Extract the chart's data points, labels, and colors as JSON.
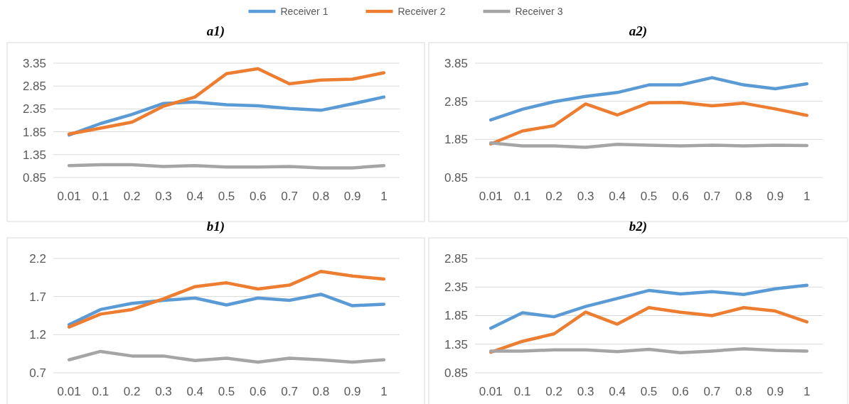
{
  "chart_data": [
    {
      "type": "line",
      "title": "a1)",
      "categories": [
        "0.01",
        "0.1",
        "0.2",
        "0.3",
        "0.4",
        "0.5",
        "0.6",
        "0.7",
        "0.8",
        "0.9",
        "1"
      ],
      "ylim": [
        0.85,
        3.35
      ],
      "yticks": [
        0.85,
        1.35,
        1.85,
        2.35,
        2.85,
        3.35
      ],
      "grid": "y",
      "legend": "top",
      "marker": "none",
      "series": [
        {
          "name": "Receiver 1",
          "color": "#5b9bd5",
          "values": [
            1.78,
            2.03,
            2.23,
            2.47,
            2.5,
            2.44,
            2.42,
            2.36,
            2.32,
            2.46,
            2.61
          ]
        },
        {
          "name": "Receiver 2",
          "color": "#ed7d31",
          "values": [
            1.8,
            1.93,
            2.06,
            2.41,
            2.61,
            3.12,
            3.23,
            2.9,
            2.98,
            3.0,
            3.14
          ]
        },
        {
          "name": "Receiver 3",
          "color": "#a5a5a5",
          "values": [
            1.11,
            1.13,
            1.13,
            1.09,
            1.11,
            1.08,
            1.08,
            1.09,
            1.06,
            1.06,
            1.11
          ]
        }
      ]
    },
    {
      "type": "line",
      "title": "a2)",
      "categories": [
        "0.01",
        "0.1",
        "0.2",
        "0.3",
        "0.4",
        "0.5",
        "0.6",
        "0.7",
        "0.8",
        "0.9",
        "1"
      ],
      "ylim": [
        0.85,
        3.85
      ],
      "yticks": [
        0.85,
        1.85,
        2.85,
        3.85
      ],
      "grid": "y",
      "marker": "none",
      "series": [
        {
          "color": "#5b9bd5",
          "values": [
            2.36,
            2.64,
            2.84,
            2.98,
            3.08,
            3.28,
            3.28,
            3.47,
            3.28,
            3.18,
            3.31
          ]
        },
        {
          "color": "#ed7d31",
          "values": [
            1.73,
            2.07,
            2.21,
            2.78,
            2.49,
            2.81,
            2.82,
            2.73,
            2.8,
            2.65,
            2.48
          ]
        },
        {
          "color": "#a5a5a5",
          "values": [
            1.76,
            1.68,
            1.68,
            1.64,
            1.72,
            1.7,
            1.68,
            1.7,
            1.68,
            1.7,
            1.69
          ]
        }
      ]
    },
    {
      "type": "line",
      "title": "b1)",
      "categories": [
        "0.01",
        "0.1",
        "0.2",
        "0.3",
        "0.4",
        "0.5",
        "0.6",
        "0.7",
        "0.8",
        "0.9",
        "1"
      ],
      "ylim": [
        0.7,
        2.2
      ],
      "yticks": [
        0.7,
        1.2,
        1.7,
        2.2
      ],
      "grid": "y",
      "marker": "none",
      "series": [
        {
          "color": "#5b9bd5",
          "values": [
            1.33,
            1.53,
            1.61,
            1.65,
            1.68,
            1.59,
            1.68,
            1.65,
            1.73,
            1.58,
            1.6
          ]
        },
        {
          "color": "#ed7d31",
          "values": [
            1.3,
            1.47,
            1.53,
            1.67,
            1.83,
            1.88,
            1.8,
            1.85,
            2.03,
            1.97,
            1.93
          ]
        },
        {
          "color": "#a5a5a5",
          "values": [
            0.87,
            0.98,
            0.92,
            0.92,
            0.86,
            0.89,
            0.84,
            0.89,
            0.87,
            0.84,
            0.87
          ]
        }
      ]
    },
    {
      "type": "line",
      "title": "b2)",
      "categories": [
        "0.01",
        "0.1",
        "0.2",
        "0.3",
        "0.4",
        "0.5",
        "0.6",
        "0.7",
        "0.8",
        "0.9",
        "1"
      ],
      "ylim": [
        0.85,
        2.85
      ],
      "yticks": [
        0.85,
        1.35,
        1.85,
        2.35,
        2.85
      ],
      "grid": "y",
      "marker": "none",
      "series": [
        {
          "color": "#5b9bd5",
          "values": [
            1.63,
            1.9,
            1.83,
            2.01,
            2.15,
            2.29,
            2.23,
            2.27,
            2.22,
            2.32,
            2.38
          ]
        },
        {
          "color": "#ed7d31",
          "values": [
            1.21,
            1.4,
            1.53,
            1.91,
            1.7,
            1.99,
            1.91,
            1.85,
            1.99,
            1.93,
            1.74
          ]
        },
        {
          "color": "#a5a5a5",
          "values": [
            1.23,
            1.23,
            1.25,
            1.25,
            1.22,
            1.26,
            1.2,
            1.23,
            1.27,
            1.24,
            1.23
          ]
        }
      ]
    }
  ]
}
